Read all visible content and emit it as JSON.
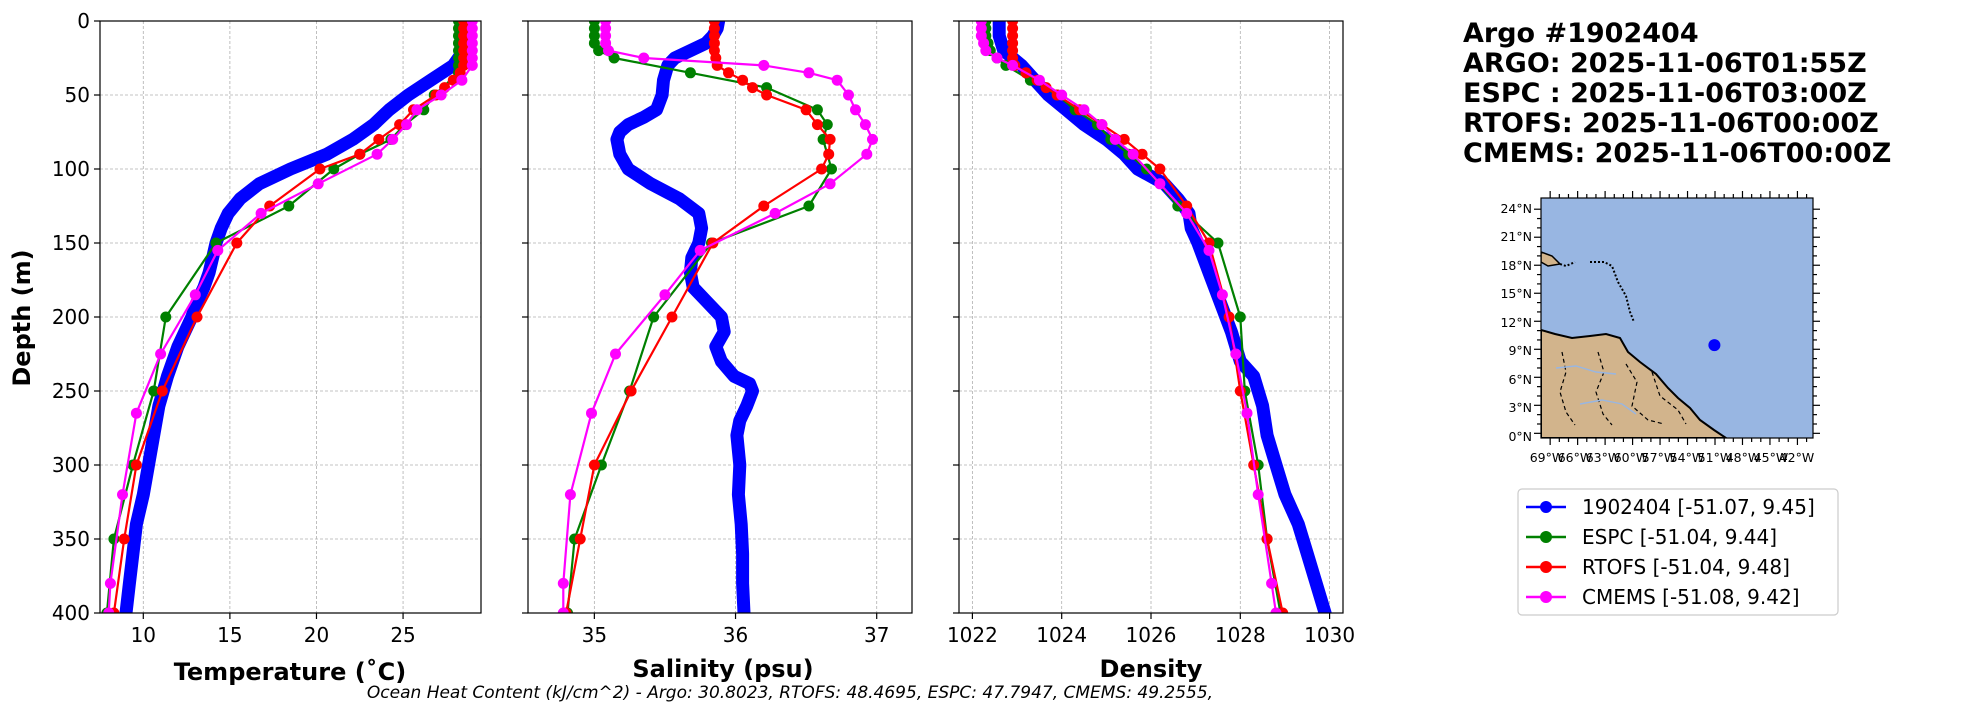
{
  "colors": {
    "argo": "#0000ff",
    "espc": "#008000",
    "rtofs": "#ff0000",
    "cmems": "#ff00ff",
    "ocean": "#98b6e2",
    "land": "#d2b48c"
  },
  "y_axis": {
    "label": "Depth (m)",
    "ylim": [
      400,
      0
    ],
    "ticks": [
      0,
      50,
      100,
      150,
      200,
      250,
      300,
      350,
      400
    ]
  },
  "info": {
    "lines": [
      "Argo #1902404",
      "ARGO: 2025-11-06T01:55Z",
      "ESPC : 2025-11-06T03:00Z",
      "RTOFS: 2025-11-06T00:00Z",
      "CMEMS: 2025-11-06T00:00Z"
    ]
  },
  "map": {
    "lat_ticks": [
      "0°N",
      "3°N",
      "6°N",
      "9°N",
      "12°N",
      "15°N",
      "18°N",
      "21°N",
      "24°N"
    ],
    "lon_ticks": [
      "69°W",
      "66°W",
      "63°W",
      "60°W",
      "57°W",
      "54°W",
      "51°W",
      "48°W",
      "45°W",
      "42°W"
    ],
    "float_position": {
      "lon": -51.07,
      "lat": 9.45
    }
  },
  "legend": [
    {
      "key": "argo",
      "label": "1902404 [-51.07, 9.45]"
    },
    {
      "key": "espc",
      "label": "ESPC [-51.04, 9.44]"
    },
    {
      "key": "rtofs",
      "label": "RTOFS [-51.04, 9.48]"
    },
    {
      "key": "cmems",
      "label": "CMEMS [-51.08, 9.42]"
    }
  ],
  "ohc_text": "Ocean Heat Content (kJ/cm^2) - Argo: 30.8023,  RTOFS: 48.4695,  ESPC: 47.7947,  CMEMS: 49.2555,",
  "chart_data": [
    {
      "type": "line",
      "title": "",
      "xlabel": "Temperature (˚C)",
      "ylabel": "Depth (m)",
      "xlim": [
        7.5,
        29.5
      ],
      "ylim": [
        400,
        0
      ],
      "xticks": [
        10,
        15,
        20,
        25
      ],
      "series": [
        {
          "name": "1902404",
          "key": "argo",
          "continuous": true,
          "depth": [
            0,
            10,
            20,
            30,
            40,
            50,
            60,
            70,
            80,
            90,
            100,
            110,
            120,
            130,
            140,
            150,
            160,
            170,
            180,
            190,
            200,
            220,
            240,
            260,
            280,
            300,
            320,
            340,
            360,
            380,
            400
          ],
          "values": [
            28.8,
            28.7,
            28.5,
            27.9,
            26.6,
            25.3,
            24.2,
            23.3,
            22.1,
            20.6,
            18.5,
            16.7,
            15.6,
            14.9,
            14.5,
            14.2,
            14.0,
            13.8,
            13.5,
            13.1,
            12.8,
            12.0,
            11.4,
            10.9,
            10.6,
            10.3,
            10.0,
            9.6,
            9.4,
            9.2,
            9.0
          ]
        },
        {
          "name": "ESPC",
          "key": "espc",
          "depth": [
            0,
            5,
            10,
            15,
            20,
            25,
            30,
            35,
            50,
            60,
            70,
            80,
            90,
            100,
            125,
            150,
            200,
            250,
            300,
            350,
            400
          ],
          "values": [
            28.2,
            28.2,
            28.2,
            28.2,
            28.2,
            28.2,
            28.2,
            28.2,
            26.8,
            26.2,
            25.1,
            24.3,
            22.5,
            21.0,
            18.4,
            14.2,
            11.3,
            10.6,
            9.4,
            8.3,
            7.9
          ]
        },
        {
          "name": "RTOFS",
          "key": "rtofs",
          "depth": [
            0,
            5,
            10,
            15,
            20,
            25,
            30,
            35,
            40,
            45,
            50,
            60,
            70,
            80,
            90,
            100,
            125,
            150,
            200,
            250,
            300,
            350,
            400
          ],
          "values": [
            28.5,
            28.5,
            28.5,
            28.5,
            28.5,
            28.5,
            28.5,
            28.3,
            27.9,
            27.4,
            26.9,
            25.6,
            24.8,
            23.6,
            22.5,
            20.2,
            17.3,
            15.4,
            13.1,
            11.1,
            9.6,
            8.9,
            8.3
          ]
        },
        {
          "name": "CMEMS",
          "key": "cmems",
          "depth": [
            0,
            5,
            10,
            15,
            20,
            25,
            30,
            40,
            50,
            60,
            70,
            80,
            90,
            110,
            130,
            155,
            185,
            225,
            265,
            320,
            380,
            400
          ],
          "values": [
            29.0,
            29.0,
            29.0,
            29.0,
            29.0,
            29.0,
            29.0,
            28.4,
            27.2,
            25.8,
            25.2,
            24.4,
            23.5,
            20.1,
            16.8,
            14.3,
            13.0,
            11.0,
            9.6,
            8.8,
            8.1,
            8.0
          ]
        }
      ]
    },
    {
      "type": "line",
      "title": "",
      "xlabel": "Salinity (psu)",
      "ylabel": "Depth (m)",
      "xlim": [
        34.53,
        37.25
      ],
      "ylim": [
        400,
        0
      ],
      "xticks": [
        35,
        36,
        37
      ],
      "series": [
        {
          "name": "1902404",
          "key": "argo",
          "continuous": true,
          "depth": [
            0,
            5,
            10,
            15,
            20,
            25,
            30,
            40,
            50,
            60,
            65,
            70,
            75,
            80,
            90,
            100,
            110,
            120,
            130,
            140,
            150,
            160,
            170,
            180,
            190,
            200,
            210,
            220,
            230,
            240,
            245,
            250,
            260,
            270,
            280,
            300,
            320,
            340,
            360,
            380,
            400
          ],
          "values": [
            35.88,
            35.87,
            35.84,
            35.79,
            35.68,
            35.57,
            35.52,
            35.49,
            35.48,
            35.44,
            35.35,
            35.24,
            35.18,
            35.16,
            35.18,
            35.24,
            35.4,
            35.6,
            35.74,
            35.76,
            35.74,
            35.69,
            35.68,
            35.7,
            35.8,
            35.9,
            35.92,
            35.86,
            35.9,
            35.99,
            36.1,
            36.12,
            36.08,
            36.03,
            36.01,
            36.03,
            36.02,
            36.04,
            36.05,
            36.05,
            36.06
          ]
        },
        {
          "name": "ESPC",
          "key": "espc",
          "depth": [
            0,
            5,
            10,
            15,
            20,
            25,
            35,
            45,
            60,
            70,
            80,
            100,
            125,
            150,
            200,
            250,
            300,
            350,
            400
          ],
          "values": [
            35.0,
            35.0,
            35.0,
            35.0,
            35.03,
            35.14,
            35.68,
            36.22,
            36.58,
            36.65,
            36.62,
            36.68,
            36.52,
            35.83,
            35.42,
            35.25,
            35.05,
            34.86,
            34.81
          ]
        },
        {
          "name": "RTOFS",
          "key": "rtofs",
          "depth": [
            0,
            5,
            10,
            15,
            20,
            25,
            30,
            35,
            40,
            45,
            50,
            60,
            70,
            80,
            90,
            100,
            125,
            150,
            200,
            250,
            300,
            350,
            400
          ],
          "values": [
            35.85,
            35.85,
            35.85,
            35.85,
            35.85,
            35.86,
            35.87,
            35.95,
            36.05,
            36.12,
            36.22,
            36.5,
            36.58,
            36.67,
            36.66,
            36.61,
            36.2,
            35.84,
            35.55,
            35.26,
            35.0,
            34.9,
            34.8
          ]
        },
        {
          "name": "CMEMS",
          "key": "cmems",
          "depth": [
            0,
            5,
            10,
            15,
            20,
            25,
            30,
            35,
            40,
            50,
            60,
            70,
            80,
            90,
            110,
            130,
            155,
            185,
            225,
            265,
            320,
            380,
            400
          ],
          "values": [
            35.08,
            35.08,
            35.08,
            35.08,
            35.1,
            35.35,
            36.2,
            36.52,
            36.72,
            36.8,
            36.85,
            36.92,
            36.97,
            36.93,
            36.67,
            36.28,
            35.75,
            35.5,
            35.15,
            34.98,
            34.83,
            34.78,
            34.78
          ]
        }
      ]
    },
    {
      "type": "line",
      "title": "",
      "xlabel": "Density",
      "ylabel": "Depth (m)",
      "xlim": [
        1021.7,
        1030.3
      ],
      "ylim": [
        400,
        0
      ],
      "xticks": [
        1022,
        1024,
        1026,
        1028,
        1030
      ],
      "series": [
        {
          "name": "1902404",
          "key": "argo",
          "continuous": true,
          "depth": [
            0,
            10,
            20,
            30,
            40,
            50,
            60,
            70,
            80,
            90,
            100,
            110,
            120,
            130,
            140,
            150,
            170,
            190,
            210,
            230,
            240,
            260,
            280,
            300,
            320,
            340,
            360,
            380,
            400
          ],
          "values": [
            1022.6,
            1022.6,
            1022.7,
            1023.1,
            1023.4,
            1023.7,
            1024.1,
            1024.5,
            1025.0,
            1025.4,
            1025.7,
            1026.3,
            1026.6,
            1026.85,
            1026.9,
            1027.05,
            1027.3,
            1027.55,
            1027.8,
            1028.0,
            1028.3,
            1028.5,
            1028.6,
            1028.8,
            1029.0,
            1029.3,
            1029.5,
            1029.7,
            1029.9
          ]
        },
        {
          "name": "ESPC",
          "key": "espc",
          "depth": [
            0,
            5,
            10,
            15,
            20,
            25,
            30,
            40,
            50,
            60,
            70,
            80,
            90,
            100,
            125,
            150,
            200,
            250,
            300,
            350,
            400
          ],
          "values": [
            1022.3,
            1022.3,
            1022.3,
            1022.35,
            1022.4,
            1022.55,
            1022.75,
            1023.3,
            1023.9,
            1024.3,
            1024.8,
            1025.1,
            1025.5,
            1025.9,
            1026.6,
            1027.5,
            1028.0,
            1028.1,
            1028.4,
            1028.6,
            1028.9
          ]
        },
        {
          "name": "RTOFS",
          "key": "rtofs",
          "depth": [
            0,
            5,
            10,
            15,
            20,
            25,
            30,
            35,
            40,
            45,
            50,
            60,
            70,
            80,
            90,
            100,
            125,
            150,
            200,
            250,
            300,
            350,
            400
          ],
          "values": [
            1022.9,
            1022.9,
            1022.9,
            1022.9,
            1022.9,
            1022.9,
            1022.95,
            1023.2,
            1023.45,
            1023.65,
            1023.9,
            1024.4,
            1024.9,
            1025.4,
            1025.8,
            1026.2,
            1026.8,
            1027.3,
            1027.75,
            1028.0,
            1028.3,
            1028.6,
            1028.95
          ]
        },
        {
          "name": "CMEMS",
          "key": "cmems",
          "depth": [
            0,
            5,
            10,
            15,
            20,
            25,
            30,
            40,
            50,
            60,
            70,
            80,
            90,
            110,
            130,
            155,
            185,
            225,
            265,
            320,
            380,
            400
          ],
          "values": [
            1022.2,
            1022.2,
            1022.2,
            1022.25,
            1022.3,
            1022.55,
            1022.9,
            1023.5,
            1024.0,
            1024.5,
            1024.9,
            1025.2,
            1025.6,
            1026.2,
            1026.8,
            1027.3,
            1027.6,
            1027.9,
            1028.15,
            1028.4,
            1028.7,
            1028.8
          ]
        }
      ]
    }
  ]
}
